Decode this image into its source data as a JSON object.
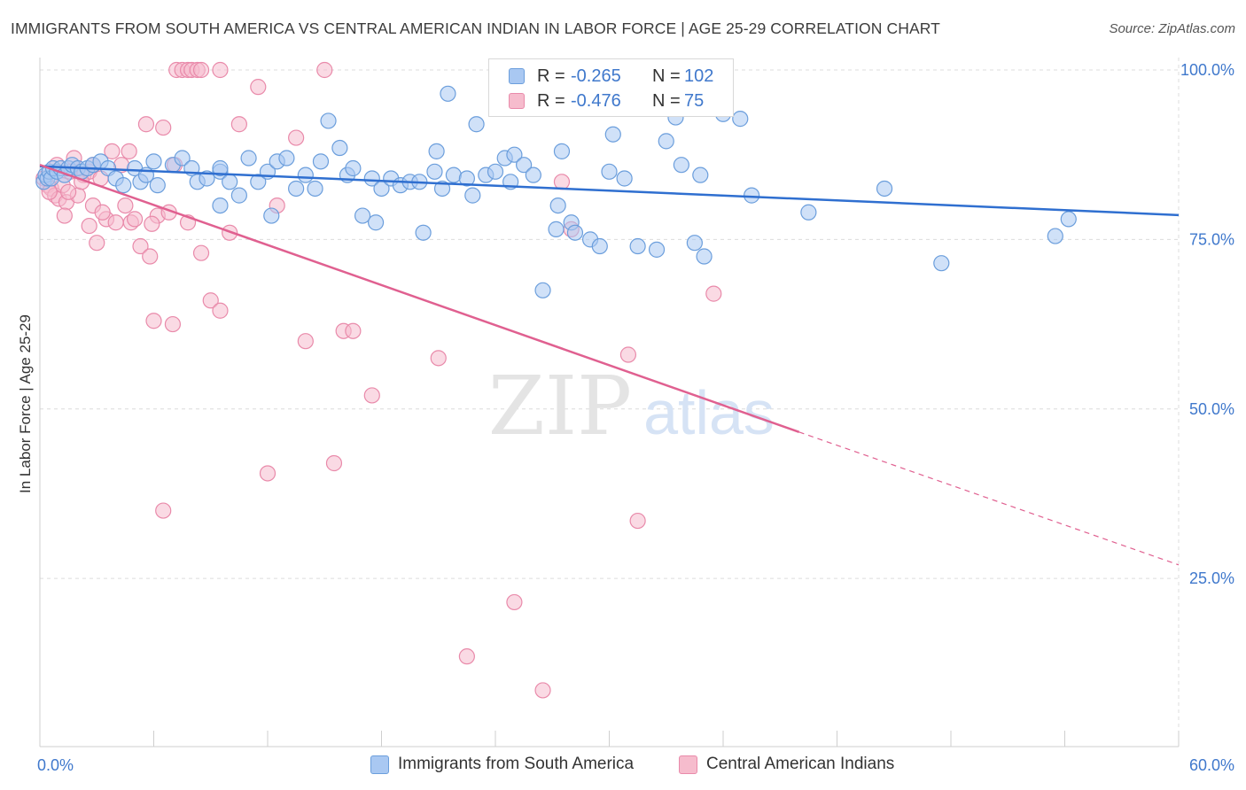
{
  "title": "IMMIGRANTS FROM SOUTH AMERICA VS CENTRAL AMERICAN INDIAN IN LABOR FORCE | AGE 25-29 CORRELATION CHART",
  "source": "Source: ZipAtlas.com",
  "watermark": {
    "zip": "ZIP",
    "atlas": "atlas"
  },
  "legend": {
    "rows": [
      {
        "r_label": "R =",
        "r_value": "-0.265",
        "n_label": "N =",
        "n_value": "102"
      },
      {
        "r_label": "R =",
        "r_value": "-0.476",
        "n_label": "N =",
        "n_value": "75"
      }
    ]
  },
  "colors": {
    "blue_fill": "#a9c8f2",
    "blue_stroke": "#6b9edc",
    "blue_line": "#2f6fd0",
    "pink_fill": "#f6bccd",
    "pink_stroke": "#e98aaa",
    "pink_line": "#e06090",
    "axis_label": "#3f78cc",
    "grid": "#dcdcdc"
  },
  "chart_data": {
    "type": "scatter",
    "title": "IMMIGRANTS FROM SOUTH AMERICA VS CENTRAL AMERICAN INDIAN IN LABOR FORCE | AGE 25-29 CORRELATION CHART",
    "xlabel": "",
    "ylabel": "In Labor Force | Age 25-29",
    "xlim": [
      0,
      60
    ],
    "ylim": [
      0,
      102
    ],
    "x_tick_labels": [
      "0.0%",
      "60.0%"
    ],
    "y_ticks": [
      25,
      50,
      75,
      100
    ],
    "y_tick_labels": [
      "25.0%",
      "50.0%",
      "75.0%",
      "100.0%"
    ],
    "grid": true,
    "legend_position": "top-center",
    "series": [
      {
        "name": "Immigrants from South America",
        "color": "#a9c8f2",
        "R": -0.265,
        "N": 102,
        "trend": {
          "x0": 0,
          "y0": 85.8,
          "x1": 60,
          "y1": 78.6,
          "dashed_from": null
        },
        "points": [
          [
            0.2,
            83.5
          ],
          [
            0.3,
            84.5
          ],
          [
            0.4,
            84
          ],
          [
            0.5,
            85
          ],
          [
            0.6,
            84
          ],
          [
            0.7,
            85.5
          ],
          [
            0.9,
            85
          ],
          [
            1.1,
            85.5
          ],
          [
            1.3,
            84.5
          ],
          [
            1.5,
            85.5
          ],
          [
            1.7,
            86
          ],
          [
            2.0,
            85.5
          ],
          [
            2.2,
            85
          ],
          [
            2.5,
            85.5
          ],
          [
            2.8,
            86
          ],
          [
            3.2,
            86.5
          ],
          [
            3.6,
            85.5
          ],
          [
            4.0,
            84
          ],
          [
            4.4,
            83
          ],
          [
            5.0,
            85.5
          ],
          [
            5.3,
            83.5
          ],
          [
            6.0,
            86.5
          ],
          [
            6.2,
            83
          ],
          [
            7.0,
            86
          ],
          [
            7.5,
            87
          ],
          [
            8.0,
            85.5
          ],
          [
            8.3,
            83.5
          ],
          [
            8.8,
            84
          ],
          [
            9.5,
            85
          ],
          [
            9.5,
            80
          ],
          [
            10.0,
            83.5
          ],
          [
            10.5,
            81.5
          ],
          [
            11.0,
            87
          ],
          [
            11.5,
            83.5
          ],
          [
            12.0,
            85
          ],
          [
            12.5,
            86.5
          ],
          [
            13.0,
            87
          ],
          [
            12.2,
            78.5
          ],
          [
            13.5,
            82.5
          ],
          [
            14.0,
            84.5
          ],
          [
            14.5,
            82.5
          ],
          [
            14.8,
            86.5
          ],
          [
            15.2,
            92.5
          ],
          [
            15.8,
            88.5
          ],
          [
            16.2,
            84.5
          ],
          [
            16.5,
            85.5
          ],
          [
            17.0,
            78.5
          ],
          [
            17.5,
            84
          ],
          [
            17.7,
            77.5
          ],
          [
            18.0,
            82.5
          ],
          [
            18.5,
            84
          ],
          [
            19.0,
            83
          ],
          [
            19.5,
            83.5
          ],
          [
            20.0,
            83.5
          ],
          [
            20.2,
            76
          ],
          [
            20.8,
            85
          ],
          [
            21.2,
            82.5
          ],
          [
            21.5,
            96.5
          ],
          [
            21.8,
            84.5
          ],
          [
            22.5,
            84
          ],
          [
            22.8,
            81.5
          ],
          [
            23.0,
            92
          ],
          [
            23.5,
            84.5
          ],
          [
            24.0,
            85
          ],
          [
            24.5,
            87
          ],
          [
            24.8,
            83.5
          ],
          [
            25.0,
            87.5
          ],
          [
            25.5,
            86
          ],
          [
            26.0,
            84.5
          ],
          [
            26.5,
            67.5
          ],
          [
            27.2,
            76.5
          ],
          [
            27.3,
            80
          ],
          [
            27.5,
            88
          ],
          [
            28.0,
            77.5
          ],
          [
            28.2,
            76
          ],
          [
            29.0,
            75
          ],
          [
            30.0,
            85
          ],
          [
            30.2,
            90.5
          ],
          [
            29.5,
            74
          ],
          [
            30.8,
            84
          ],
          [
            31.5,
            74
          ],
          [
            31.9,
            100
          ],
          [
            32.5,
            73.5
          ],
          [
            33.0,
            89.5
          ],
          [
            33.5,
            93
          ],
          [
            34.5,
            74.5
          ],
          [
            35.0,
            72.5
          ],
          [
            36.0,
            93.5
          ],
          [
            37.5,
            81.5
          ],
          [
            40.5,
            79
          ],
          [
            44.5,
            82.5
          ],
          [
            47.5,
            71.5
          ],
          [
            53.5,
            75.5
          ],
          [
            54.2,
            78
          ],
          [
            35.0,
            100
          ],
          [
            33.8,
            86
          ],
          [
            34.8,
            84.5
          ],
          [
            26.7,
            94.5
          ],
          [
            20.9,
            88
          ],
          [
            36.9,
            92.8
          ],
          [
            9.5,
            85.5
          ],
          [
            5.6,
            84.5
          ]
        ]
      },
      {
        "name": "Central American Indians",
        "color": "#f6bccd",
        "R": -0.476,
        "N": 75,
        "trend": {
          "x0": 0,
          "y0": 86.0,
          "x1": 40.0,
          "y1": 46.6,
          "dashed_to": {
            "x": 60,
            "y": 27.0
          }
        },
        "points": [
          [
            0.2,
            84
          ],
          [
            0.4,
            83
          ],
          [
            0.6,
            82.5
          ],
          [
            0.8,
            81.5
          ],
          [
            1.0,
            81
          ],
          [
            1.2,
            83
          ],
          [
            1.4,
            80.5
          ],
          [
            1.6,
            85
          ],
          [
            1.8,
            87
          ],
          [
            2.0,
            81.5
          ],
          [
            2.3,
            84.5
          ],
          [
            2.6,
            85
          ],
          [
            2.8,
            80
          ],
          [
            3.0,
            74.5
          ],
          [
            3.2,
            84
          ],
          [
            3.5,
            78
          ],
          [
            3.8,
            88
          ],
          [
            4.0,
            77.5
          ],
          [
            4.3,
            86
          ],
          [
            4.5,
            80
          ],
          [
            4.8,
            77.5
          ],
          [
            5.0,
            78
          ],
          [
            5.3,
            74
          ],
          [
            5.6,
            92
          ],
          [
            5.8,
            72.5
          ],
          [
            6.0,
            63
          ],
          [
            6.2,
            78.5
          ],
          [
            6.5,
            91.5
          ],
          [
            6.8,
            79
          ],
          [
            7.0,
            62.5
          ],
          [
            7.2,
            100
          ],
          [
            7.5,
            100
          ],
          [
            7.8,
            100
          ],
          [
            8.0,
            100
          ],
          [
            8.3,
            100
          ],
          [
            8.5,
            100
          ],
          [
            9.0,
            66
          ],
          [
            9.5,
            100
          ],
          [
            9.5,
            64.5
          ],
          [
            10.0,
            76
          ],
          [
            10.5,
            92
          ],
          [
            11.5,
            97.5
          ],
          [
            12.0,
            40.5
          ],
          [
            12.5,
            80
          ],
          [
            13.5,
            90
          ],
          [
            14.0,
            60
          ],
          [
            15.0,
            100
          ],
          [
            15.5,
            42
          ],
          [
            16.0,
            61.5
          ],
          [
            16.5,
            61.5
          ],
          [
            17.5,
            52
          ],
          [
            21.0,
            57.5
          ],
          [
            22.5,
            13.5
          ],
          [
            25.0,
            21.5
          ],
          [
            26.5,
            8.5
          ],
          [
            27.5,
            83.5
          ],
          [
            28.0,
            76.5
          ],
          [
            29.0,
            100
          ],
          [
            31.0,
            58
          ],
          [
            31.5,
            33.5
          ],
          [
            35.5,
            67
          ],
          [
            7.8,
            77.5
          ],
          [
            6.5,
            35
          ],
          [
            2.6,
            77
          ],
          [
            8.5,
            73
          ],
          [
            1.5,
            82
          ],
          [
            0.9,
            86
          ],
          [
            2.2,
            83.5
          ],
          [
            4.7,
            88
          ],
          [
            3.3,
            79
          ],
          [
            5.9,
            77.3
          ],
          [
            2.8,
            86
          ],
          [
            7.1,
            86
          ],
          [
            0.5,
            82
          ],
          [
            1.3,
            78.5
          ]
        ]
      }
    ]
  },
  "axis": {
    "y_axis_label": "In Labor Force | Age 25-29",
    "x_left_label": "0.0%",
    "x_right_label": "60.0%",
    "y_labels": [
      "25.0%",
      "50.0%",
      "75.0%",
      "100.0%"
    ]
  },
  "bottom_legend": [
    {
      "label": "Immigrants from South America"
    },
    {
      "label": "Central American Indians"
    }
  ]
}
